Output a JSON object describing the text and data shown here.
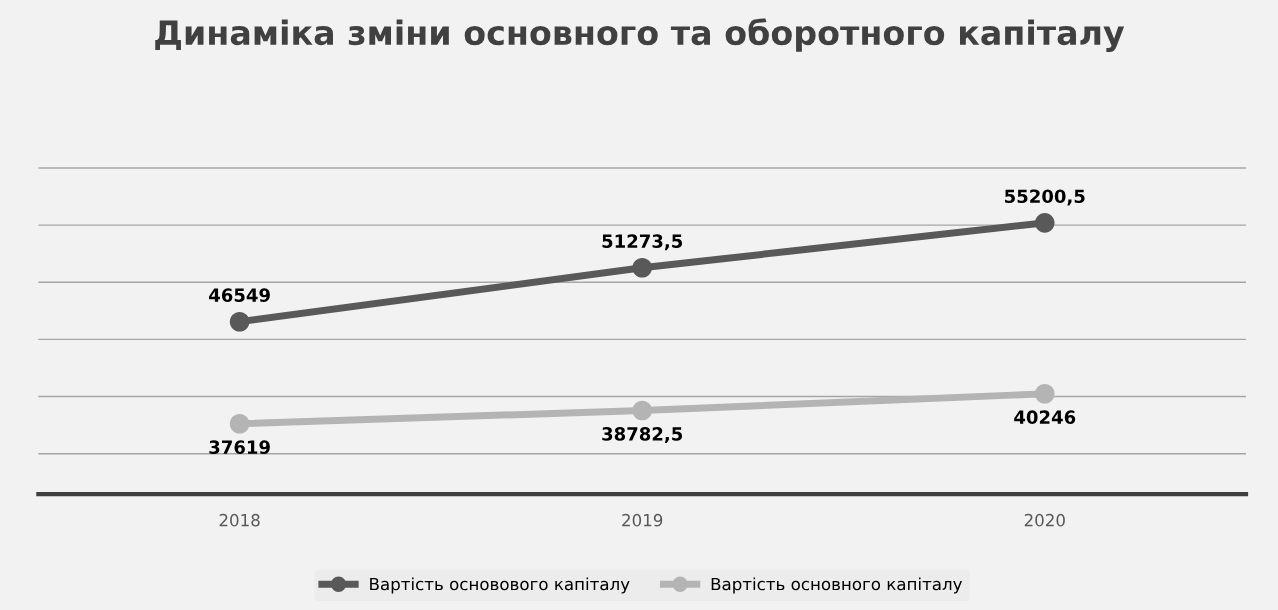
{
  "chart_data": {
    "type": "line",
    "title": "Динаміка зміни основного та оборотного капіталу",
    "categories": [
      "2018",
      "2019",
      "2020"
    ],
    "series": [
      {
        "name": "Вартість основового капіталу",
        "color": "#595959",
        "values": [
          46549,
          51273.5,
          55200.5
        ],
        "value_labels": [
          "46549",
          "51273,5",
          "55200,5"
        ]
      },
      {
        "name": "Вартість основного капіталу",
        "color": "#b4b4b4",
        "values": [
          37619,
          38782.5,
          40246
        ],
        "value_labels": [
          "37619",
          "38782,5",
          "40246"
        ]
      }
    ],
    "tick_labels": "x",
    "grid": "y",
    "legend": "bottom",
    "marker": "circle",
    "line_style": "solid"
  }
}
